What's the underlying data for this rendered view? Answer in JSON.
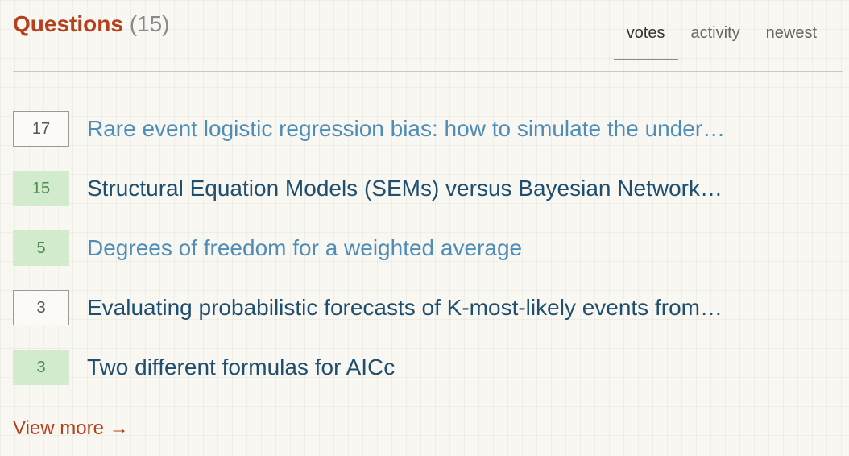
{
  "header": {
    "title": "Questions",
    "count": "(15)"
  },
  "tabs": [
    {
      "label": "votes",
      "active": true
    },
    {
      "label": "activity",
      "active": false
    },
    {
      "label": "newest",
      "active": false
    }
  ],
  "questions": [
    {
      "votes": "17",
      "title": "Rare event logistic regression bias: how to simulate the under…",
      "accepted": false,
      "visited": true
    },
    {
      "votes": "15",
      "title": "Structural Equation Models (SEMs) versus Bayesian Network…",
      "accepted": true,
      "visited": false
    },
    {
      "votes": "5",
      "title": "Degrees of freedom for a weighted average",
      "accepted": true,
      "visited": true
    },
    {
      "votes": "3",
      "title": "Evaluating probabilistic forecasts of K-most-likely events from…",
      "accepted": false,
      "visited": false
    },
    {
      "votes": "3",
      "title": "Two different formulas for AICc",
      "accepted": true,
      "visited": false
    }
  ],
  "footer": {
    "view_more": "View more →"
  },
  "colors": {
    "accent": "#b5401d",
    "link": "#1f4e6e",
    "visited_link": "#4d8db8",
    "accepted_bg": "#d3ebcd",
    "accepted_text": "#4a8a4a"
  }
}
